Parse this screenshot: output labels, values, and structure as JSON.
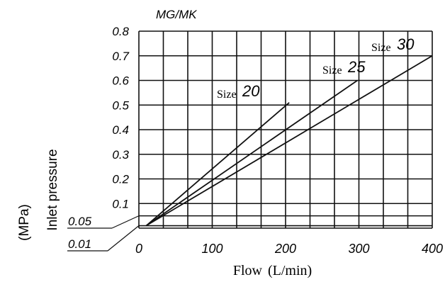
{
  "chart_data": {
    "type": "line",
    "title": "MG/MK",
    "xlabel": "Flow",
    "xlabel_unit": "(L/min)",
    "ylabel": "Inlet pressure",
    "ylabel_unit": "(MPa)",
    "xlim": [
      0,
      400
    ],
    "ylim": [
      0,
      0.8
    ],
    "grid": true,
    "x_ticks": [
      "0",
      "100",
      "200",
      "300",
      "400"
    ],
    "y_ticks": [
      "0.1",
      "0.2",
      "0.3",
      "0.4",
      "0.5",
      "0.6",
      "0.7",
      "0.8"
    ],
    "extra_ticks": [
      "0.05",
      "0.01"
    ],
    "series": [
      {
        "name": "20",
        "name_prefix": "Size",
        "x": [
          10,
          205
        ],
        "y": [
          0.01,
          0.51
        ]
      },
      {
        "name": "25",
        "name_prefix": "Size",
        "x": [
          10,
          298
        ],
        "y": [
          0.01,
          0.6
        ]
      },
      {
        "name": "30",
        "name_prefix": "Size",
        "x": [
          10,
          400
        ],
        "y": [
          0.01,
          0.7
        ]
      }
    ]
  }
}
